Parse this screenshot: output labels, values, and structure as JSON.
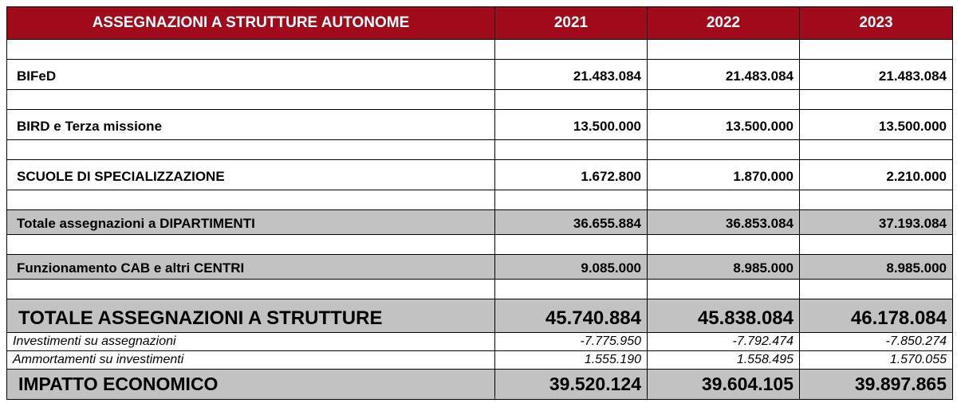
{
  "table": {
    "header": {
      "title": "ASSEGNAZIONI A STRUTTURE AUTONOME",
      "years": [
        "2021",
        "2022",
        "2023"
      ]
    },
    "rows": {
      "bifed": {
        "label": "BIFeD",
        "values": [
          "21.483.084",
          "21.483.084",
          "21.483.084"
        ]
      },
      "bird": {
        "label": "BIRD e Terza missione",
        "values": [
          "13.500.000",
          "13.500.000",
          "13.500.000"
        ]
      },
      "scuole": {
        "label": "SCUOLE DI SPECIALIZZAZIONE",
        "values": [
          "1.672.800",
          "1.870.000",
          "2.210.000"
        ]
      },
      "totale_dipartimenti": {
        "label": "Totale assegnazioni a DIPARTIMENTI",
        "values": [
          "36.655.884",
          "36.853.084",
          "37.193.084"
        ]
      },
      "funzionamento": {
        "label": "Funzionamento CAB e altri CENTRI",
        "values": [
          "9.085.000",
          "8.985.000",
          "8.985.000"
        ]
      },
      "totale_strutture": {
        "label": "TOTALE ASSEGNAZIONI A STRUTTURE",
        "values": [
          "45.740.884",
          "45.838.084",
          "46.178.084"
        ]
      },
      "investimenti": {
        "label": "Investimenti su assegnazioni",
        "values": [
          "-7.775.950",
          "-7.792.474",
          "-7.850.274"
        ]
      },
      "ammortamenti": {
        "label": "Ammortamenti su investimenti",
        "values": [
          "1.555.190",
          "1.558.495",
          "1.570.055"
        ]
      },
      "impatto": {
        "label": "IMPATTO ECONOMICO",
        "values": [
          "39.520.124",
          "39.604.105",
          "39.897.865"
        ]
      }
    }
  },
  "colors": {
    "header_bg": "#a00a1a",
    "header_text": "#ffffff",
    "highlight_row_bg": "#c2c2c2",
    "border": "#000000"
  }
}
